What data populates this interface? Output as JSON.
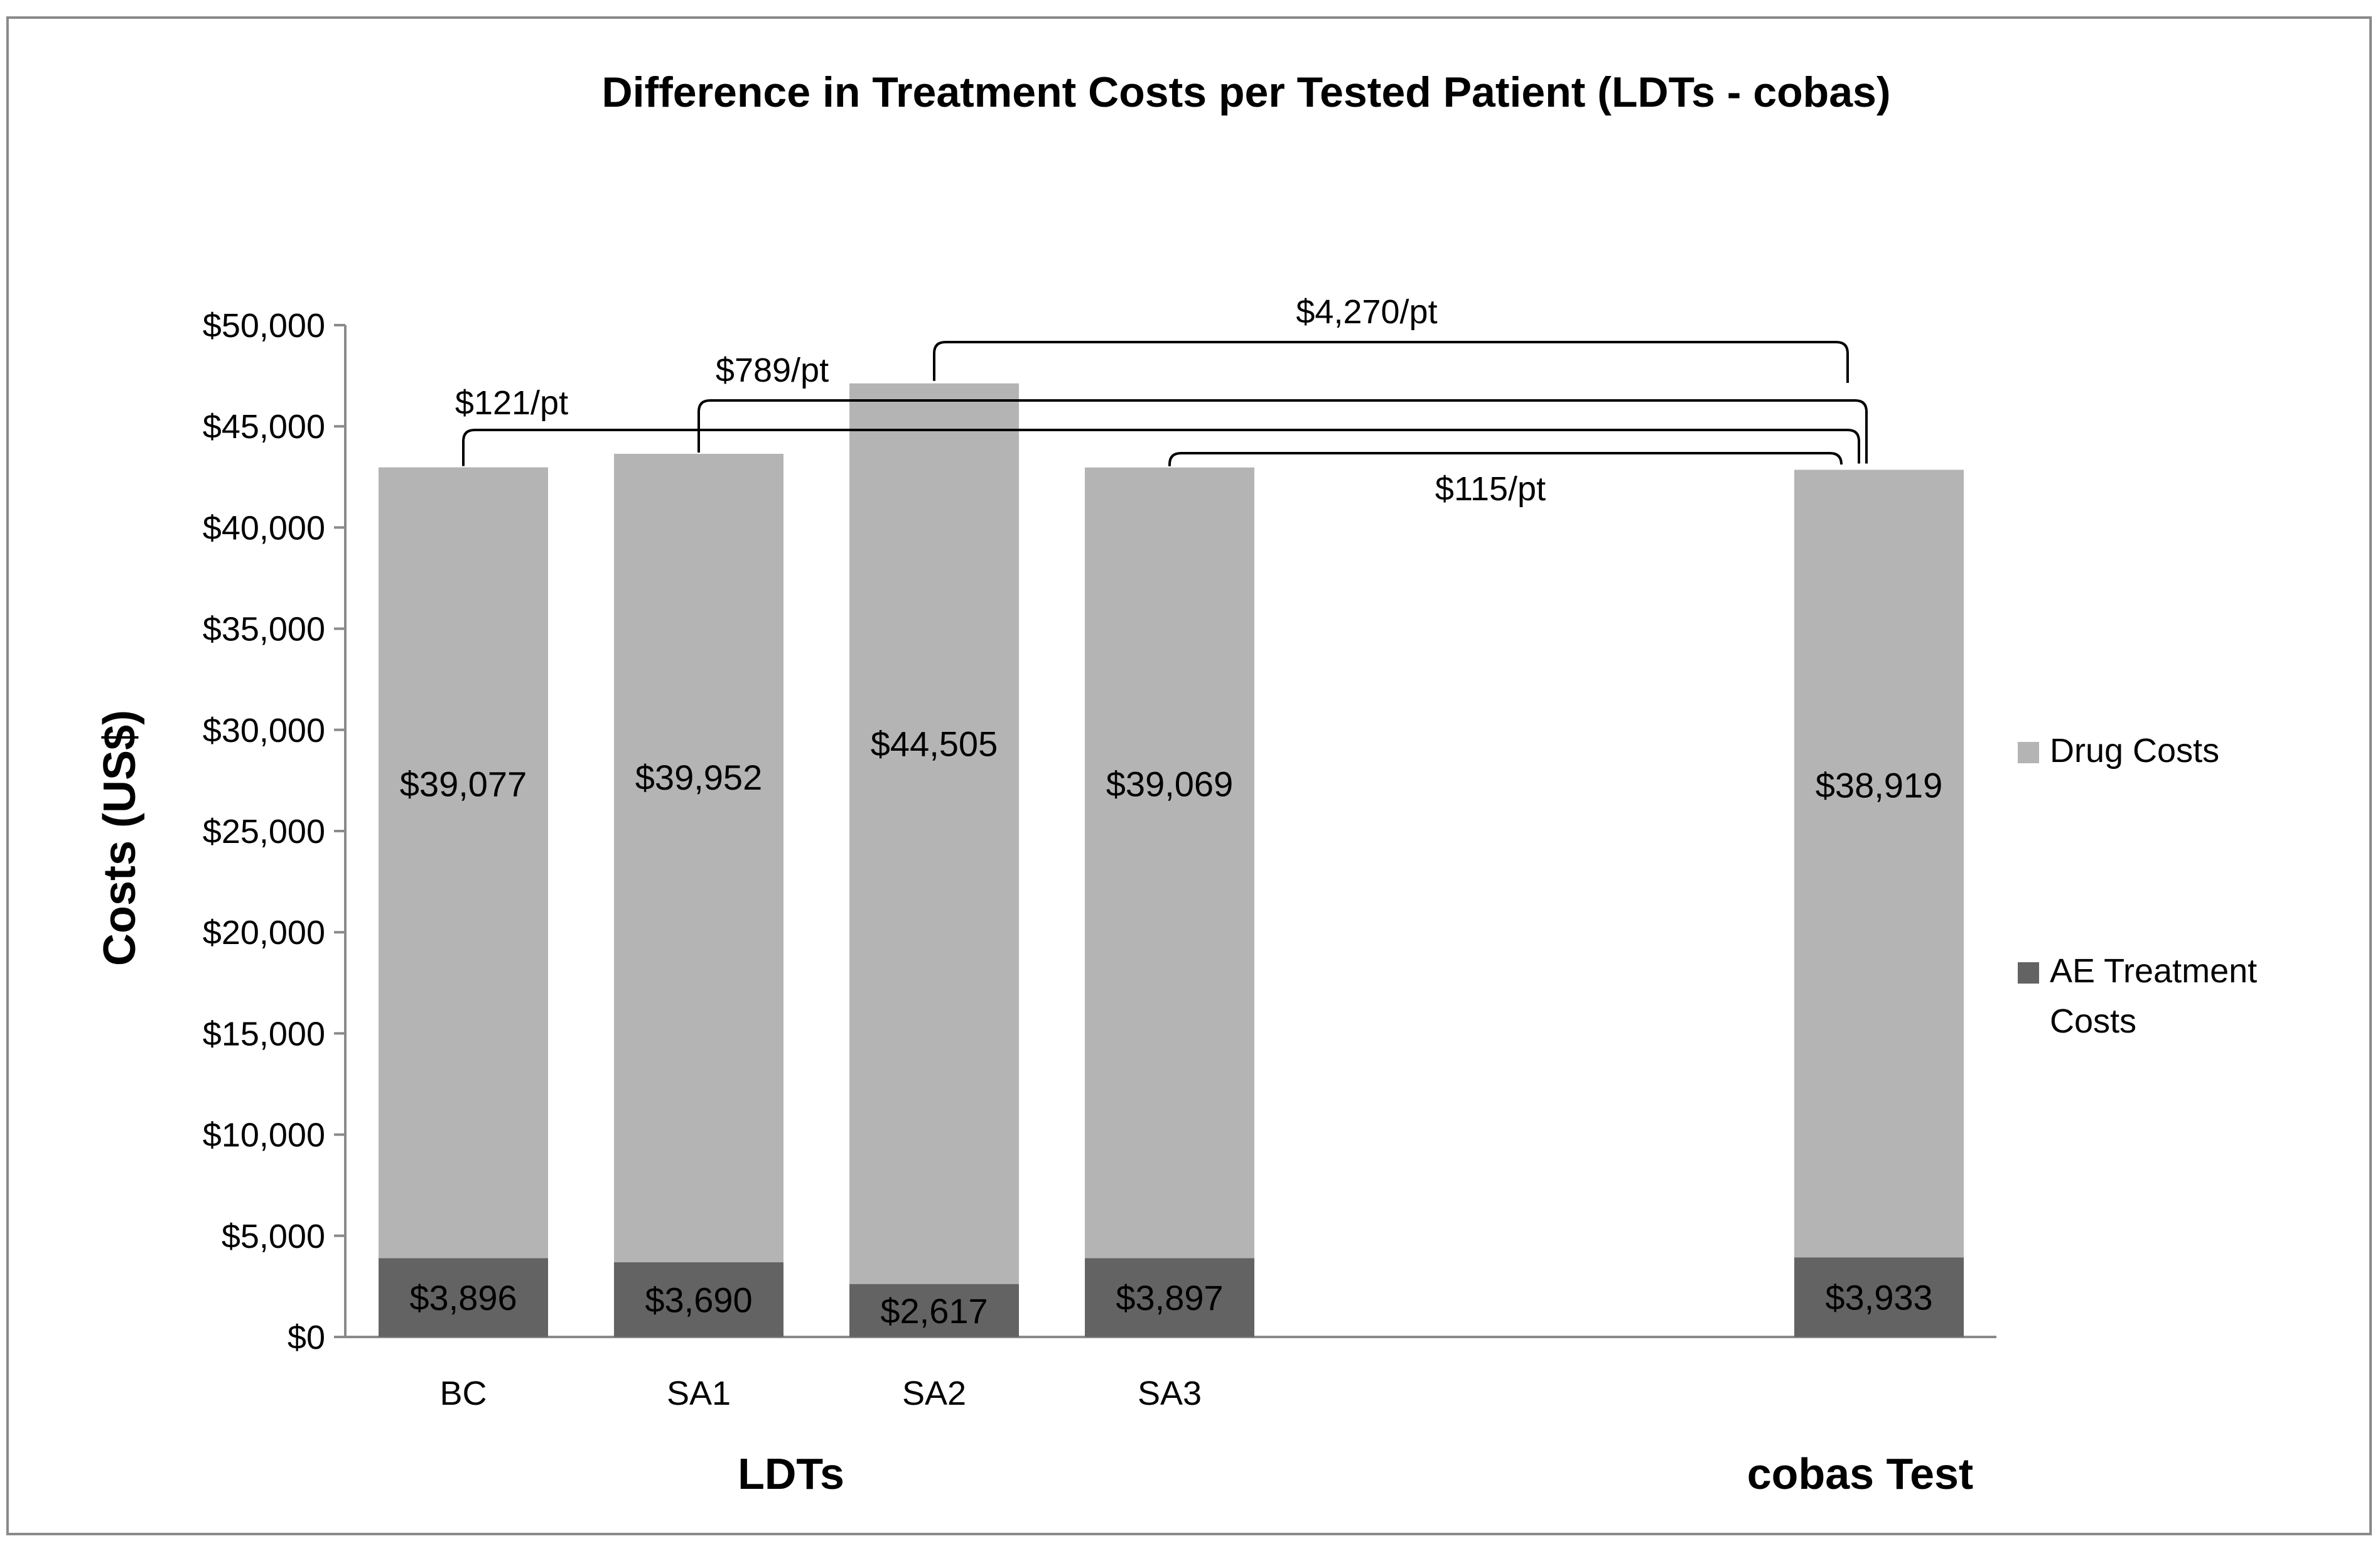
{
  "chart_data": {
    "type": "bar",
    "stacked": true,
    "title": "Difference in Treatment Costs per Tested Patient (LDTs - cobas)",
    "ylabel": "Costs (US$)",
    "ylim": [
      0,
      50000
    ],
    "yticks": [
      "$0",
      "$5,000",
      "$10,000",
      "$15,000",
      "$20,000",
      "$25,000",
      "$30,000",
      "$35,000",
      "$40,000",
      "$45,000",
      "$50,000"
    ],
    "categories": [
      "BC",
      "SA1",
      "SA2",
      "SA3",
      "cobas Test"
    ],
    "groups": [
      {
        "label": "LDTs",
        "categories": [
          "BC",
          "SA1",
          "SA2",
          "SA3"
        ]
      },
      {
        "label": "cobas Test",
        "categories": [
          "cobas Test"
        ]
      }
    ],
    "series": [
      {
        "name": "AE Treatment Costs",
        "color": "#636363",
        "values": [
          3896,
          3690,
          2617,
          3897,
          3933
        ],
        "labels": [
          "$3,896",
          "$3,690",
          "$2,617",
          "$3,897",
          "$3,933"
        ]
      },
      {
        "name": "Drug Costs",
        "color": "#b4b4b4",
        "values": [
          39077,
          39952,
          44505,
          39069,
          38919
        ],
        "labels": [
          "$39,077",
          "$39,952",
          "$44,505",
          "$39,069",
          "$38,919"
        ]
      }
    ],
    "legend": {
      "position": "right",
      "items": [
        {
          "name": "Drug Costs",
          "color": "#b4b4b4"
        },
        {
          "name": "AE Treatment Costs",
          "color": "#636363"
        }
      ]
    },
    "differences": [
      {
        "label": "$121/pt",
        "from": "BC",
        "to": "cobas Test"
      },
      {
        "label": "$789/pt",
        "from": "SA1",
        "to": "cobas Test"
      },
      {
        "label": "$4,270/pt",
        "from": "SA2",
        "to": "cobas Test"
      },
      {
        "label": "$115/pt",
        "from": "SA3",
        "to": "cobas Test"
      }
    ],
    "grid": false
  }
}
